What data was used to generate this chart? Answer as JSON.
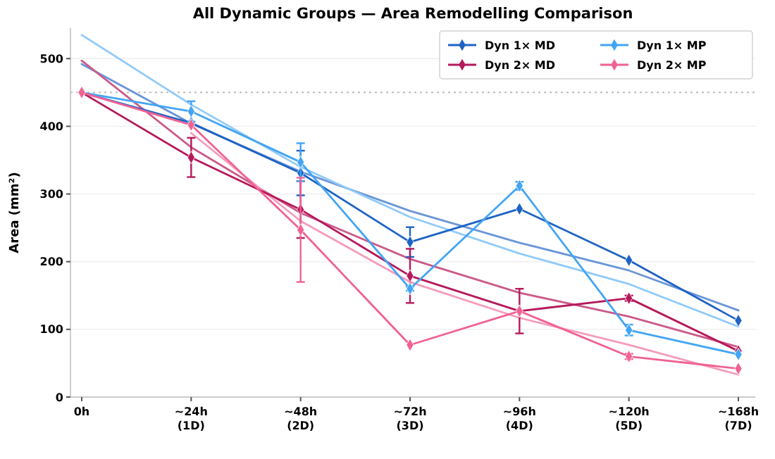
{
  "chart_data": {
    "type": "line",
    "title": "All Dynamic Groups — Area Remodelling Comparison",
    "ylabel": "Area (mm²)",
    "categories": [
      "0h",
      "~24h\n(1D)",
      "~48h\n(2D)",
      "~72h\n(3D)",
      "~96h\n(4D)",
      "~120h\n(5D)",
      "~168h\n(7D)"
    ],
    "ylim": [
      0,
      545
    ],
    "yticks": [
      0,
      100,
      200,
      300,
      400,
      500
    ],
    "grid": "y",
    "legend": "top right",
    "marker": "diamond",
    "line_style": "solid",
    "ref_lines": [
      {
        "axis": "y",
        "value": 450,
        "color": "#bbbbbb",
        "line_style": "dotted"
      }
    ],
    "series": [
      {
        "name": "Dyn 1× MD",
        "color": "#1e63c4",
        "values": [
          450,
          405,
          331,
          229,
          278,
          202,
          113
        ],
        "errors": [
          null,
          null,
          33,
          22,
          null,
          null,
          null
        ]
      },
      {
        "name": "Dyn 2× MD",
        "color": "#b5195b",
        "values": [
          450,
          354,
          277,
          179,
          127,
          146,
          68
        ],
        "errors": [
          null,
          29,
          42,
          40,
          33,
          4,
          null
        ]
      },
      {
        "name": "Dyn 1× MP",
        "color": "#42a5f5",
        "values": [
          450,
          422,
          347,
          160,
          312,
          99,
          63
        ],
        "errors": [
          null,
          15,
          28,
          3,
          6,
          8,
          null
        ]
      },
      {
        "name": "Dyn 2× MP",
        "color": "#f06292",
        "values": [
          450,
          402,
          247,
          77,
          127,
          60,
          42
        ],
        "errors": [
          null,
          null,
          77,
          null,
          null,
          4,
          null
        ]
      },
      {
        "color": "#6a95d8",
        "marker": "none",
        "values": [
          492,
          404,
          333,
          275,
          228,
          187,
          128
        ]
      },
      {
        "color": "#cb5a88",
        "marker": "none",
        "values": [
          497,
          369,
          272,
          204,
          154,
          119,
          74
        ]
      },
      {
        "color": "#90caf9",
        "marker": "none",
        "values": [
          535,
          432,
          340,
          266,
          212,
          167,
          104
        ]
      },
      {
        "color": "#f59bbb",
        "marker": "none",
        "values": [
          null,
          390,
          260,
          170,
          117,
          77,
          33
        ]
      }
    ]
  }
}
